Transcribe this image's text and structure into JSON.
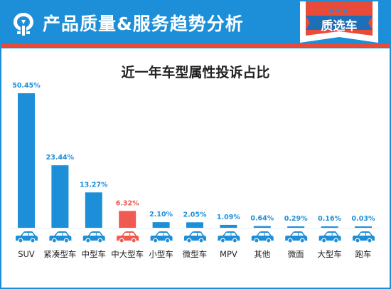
{
  "header": {
    "title": "产品质量&服务趋势分析",
    "badge_text": "质选车",
    "badge_stars": "★★★"
  },
  "colors": {
    "primary": "#1d8fd8",
    "highlight": "#f05a4f",
    "accent_stripe": "#e84b3a"
  },
  "chart_data": {
    "type": "bar",
    "title": "近一年车型属性投诉占比",
    "categories": [
      "SUV",
      "紧凑型车",
      "中型车",
      "中大型车",
      "小型车",
      "微型车",
      "MPV",
      "其他",
      "微面",
      "大型车",
      "跑车"
    ],
    "values": [
      50.45,
      23.44,
      13.27,
      6.32,
      2.1,
      2.05,
      1.09,
      0.64,
      0.29,
      0.16,
      0.03
    ],
    "labels": [
      "50.45%",
      "23.44%",
      "13.27%",
      "6.32%",
      "2.10%",
      "2.05%",
      "1.09%",
      "0.64%",
      "0.29%",
      "0.16%",
      "0.03%"
    ],
    "highlight_index": 3,
    "ylim": [
      0,
      50.45
    ],
    "unit": "%",
    "grid": false,
    "legend": "none"
  }
}
